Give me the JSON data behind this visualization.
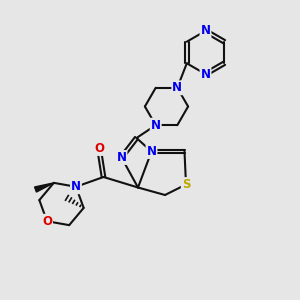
{
  "bg_color": "#e6e6e6",
  "bond_color": "#111111",
  "bond_width": 1.5,
  "dbl_sep": 0.06,
  "atom_colors": {
    "N": "#0000ee",
    "O": "#dd0000",
    "S": "#bbaa00",
    "C": "#111111"
  },
  "fs": 8.5
}
